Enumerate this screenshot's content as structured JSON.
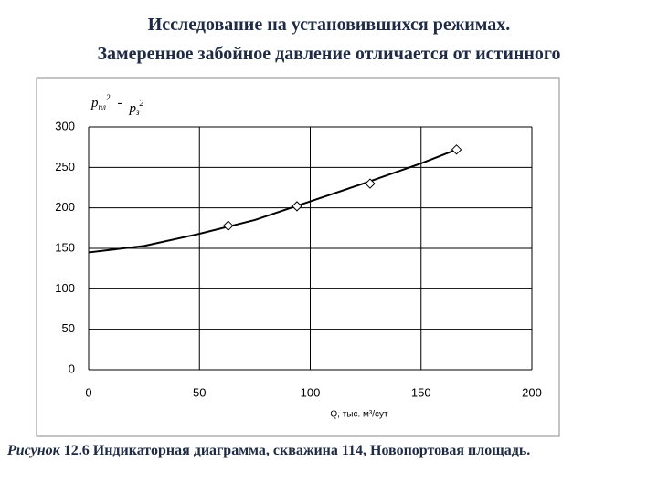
{
  "header": {
    "title_lines": [
      "Исследование на установившихся режимах.",
      "Замеренное забойное давление отличается от истинного"
    ]
  },
  "chart_data": {
    "type": "line",
    "ylabel_parts": [
      "p",
      "пл",
      "2",
      "-",
      "p",
      "з",
      "2"
    ],
    "xlabel": "Q, тыс. м³/сут",
    "xlim": [
      0,
      200
    ],
    "xticks": [
      0,
      50,
      100,
      150,
      200
    ],
    "ylim": [
      0,
      300
    ],
    "yticks": [
      0,
      50,
      100,
      150,
      200,
      250,
      300
    ],
    "grid": true,
    "series": [
      {
        "color": "#000000",
        "marker": "none",
        "x": [
          0,
          25,
          50,
          75,
          100,
          125,
          150,
          166
        ],
        "values": [
          145,
          153,
          168,
          185,
          208,
          231,
          255,
          272
        ]
      },
      {
        "color": "#000000",
        "marker": "diamond",
        "x": [
          63,
          94,
          127,
          166
        ],
        "values": [
          178,
          202,
          230,
          272
        ]
      }
    ]
  },
  "caption": {
    "label": "Рисунок",
    "text": " 12.6 Индикаторная диаграмма, скважина 114, Новопортовая площадь."
  }
}
